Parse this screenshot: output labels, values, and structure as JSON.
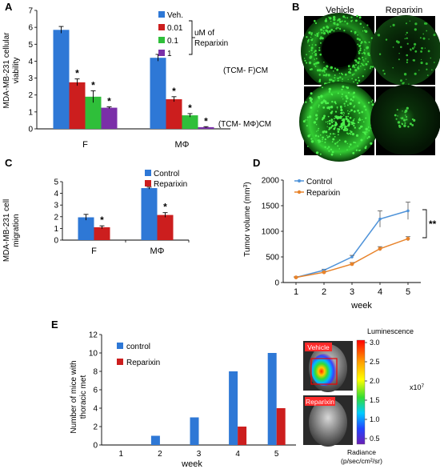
{
  "panels": {
    "A": {
      "label": "A",
      "ylabel": [
        "MDA-MB-231 cellular",
        "viability"
      ],
      "legend": [
        "Veh.",
        "0.01",
        "0.1",
        "1"
      ],
      "bracket_label": [
        "uM of",
        "Reparixin"
      ],
      "star": "*"
    },
    "B": {
      "label": "B",
      "col_labels": [
        "Vehicle",
        "Reparixin"
      ],
      "row_labels": [
        "(TCM- F)CM",
        "(TCM- MΦ)CM"
      ]
    },
    "C": {
      "label": "C",
      "ylabel": [
        "MDA-MB-231 cell",
        "migration"
      ],
      "legend": [
        "Control",
        "Reparixin"
      ],
      "star": "*"
    },
    "D": {
      "label": "D",
      "ylabel_main": "Tumor volume (mm",
      "ylabel_sup": "3",
      "ylabel_end": ")",
      "xlabel": "week",
      "legend": [
        "Control",
        "Reparixin"
      ],
      "sig": "**"
    },
    "E": {
      "label": "E",
      "ylabel": [
        "Number of mice with",
        "thoracic met"
      ],
      "xlabel": "week",
      "legend": [
        "control",
        "Reparixin"
      ],
      "bio": {
        "vehicle_tag": "Vehicle",
        "reparixin_tag": "Reparixin",
        "scale_title": "Luminescence",
        "scale_ticks": [
          "3.0",
          "2.5",
          "2.0",
          "1.5",
          "1.0",
          "0.5"
        ],
        "scale_mult": "x10",
        "scale_exp": "7",
        "units": [
          "Radiance",
          "(p/sec/cm²/sr)"
        ]
      }
    }
  },
  "colors": {
    "blue": "#2e78d6",
    "red": "#cc1e1e",
    "green": "#2fbf3a",
    "purple": "#7a2fa8",
    "line_blue": "#4f93d9",
    "line_orange": "#e8832a"
  },
  "chart_data": [
    {
      "type": "bar",
      "panel": "A",
      "categories": [
        "F",
        "MΦ"
      ],
      "series": [
        {
          "name": "Veh.",
          "values": [
            5.85,
            4.2
          ],
          "errors": [
            0.2,
            0.2
          ]
        },
        {
          "name": "0.01",
          "values": [
            2.75,
            1.75
          ],
          "errors": [
            0.2,
            0.15
          ]
        },
        {
          "name": "0.1",
          "values": [
            1.9,
            0.8
          ],
          "errors": [
            0.35,
            0.1
          ]
        },
        {
          "name": "1",
          "values": [
            1.25,
            0.1
          ],
          "errors": [
            0.05,
            0.03
          ]
        }
      ],
      "significant": [
        [
          false,
          false
        ],
        [
          true,
          true
        ],
        [
          true,
          true
        ],
        [
          true,
          true
        ]
      ],
      "yticks": [
        0,
        1,
        2,
        3,
        4,
        5,
        6,
        7
      ],
      "ylim": [
        0,
        7
      ]
    },
    {
      "type": "bar",
      "panel": "C",
      "categories": [
        "F",
        "MΦ"
      ],
      "series": [
        {
          "name": "Control",
          "values": [
            1.95,
            4.45
          ],
          "errors": [
            0.25,
            0.08
          ]
        },
        {
          "name": "Reparixin",
          "values": [
            1.1,
            2.15
          ],
          "errors": [
            0.12,
            0.2
          ]
        }
      ],
      "significant": [
        [
          false,
          false
        ],
        [
          true,
          true
        ]
      ],
      "yticks": [
        0,
        1,
        2,
        3,
        4,
        5
      ],
      "ylim": [
        0,
        5
      ]
    },
    {
      "type": "line",
      "panel": "D",
      "x": [
        1,
        2,
        3,
        4,
        5
      ],
      "series": [
        {
          "name": "Control",
          "values": [
            100,
            240,
            500,
            1240,
            1400
          ],
          "errors": [
            10,
            20,
            30,
            160,
            170
          ]
        },
        {
          "name": "Reparixin",
          "values": [
            100,
            200,
            360,
            660,
            855
          ],
          "errors": [
            10,
            20,
            30,
            40,
            40
          ]
        }
      ],
      "yticks": [
        0,
        500,
        1000,
        1500,
        2000
      ],
      "ylim": [
        0,
        2000
      ],
      "xticks": [
        1,
        2,
        3,
        4,
        5
      ]
    },
    {
      "type": "bar",
      "panel": "E",
      "categories": [
        "1",
        "2",
        "3",
        "4",
        "5"
      ],
      "series": [
        {
          "name": "control",
          "values": [
            0,
            1,
            3,
            8,
            10
          ]
        },
        {
          "name": "Reparixin",
          "values": [
            0,
            0,
            0,
            2,
            4
          ]
        }
      ],
      "yticks": [
        0,
        2,
        4,
        6,
        8,
        10,
        12
      ],
      "ylim": [
        0,
        12
      ]
    }
  ]
}
